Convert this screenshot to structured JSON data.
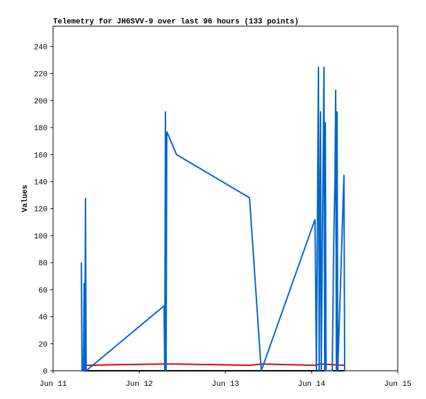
{
  "chart_data": {
    "type": "line",
    "title": "Telemetry for JH6SVV-9 over last 96 hours (133 points)",
    "y_label": "Values",
    "xlim": [
      0,
      4
    ],
    "xticks": [
      {
        "value": 0,
        "label": "Jun 11"
      },
      {
        "value": 1,
        "label": "Jun 12"
      },
      {
        "value": 2,
        "label": "Jun 13"
      },
      {
        "value": 3,
        "label": "Jun 14"
      },
      {
        "value": 4,
        "label": "Jun 15"
      }
    ],
    "ylim": [
      0,
      255
    ],
    "yticks": [
      0,
      20,
      40,
      60,
      80,
      100,
      120,
      140,
      160,
      180,
      200,
      220,
      240
    ],
    "series": [
      {
        "color": "#000000",
        "x": [
          0.328,
          3.384
        ],
        "values": [
          0,
          0
        ]
      },
      {
        "color": "#e00000",
        "x": [
          0.328,
          0.384,
          0.8,
          1.288,
          1.432,
          2.28,
          2.416,
          3.04,
          3.104,
          3.384
        ],
        "values": [
          4,
          4,
          4.5,
          5,
          5,
          4,
          5,
          4,
          5,
          4
        ]
      },
      {
        "color": "#0066cc",
        "x": [
          0.328,
          0.336,
          0.352,
          0.36,
          0.368,
          0.376,
          0.384,
          1.288,
          1.296,
          1.304,
          1.312,
          1.32,
          1.432,
          2.28,
          2.416,
          3.04,
          3.056,
          3.08,
          3.088,
          3.104,
          3.112,
          3.144,
          3.152,
          3.16,
          3.168,
          3.24,
          3.256,
          3.272,
          3.28,
          3.288,
          3.296,
          3.304,
          3.376,
          3.384
        ],
        "values": [
          80,
          0,
          0,
          65,
          0,
          128,
          0,
          48,
          0,
          192,
          0,
          177,
          160,
          128,
          0,
          112,
          0,
          225,
          0,
          192,
          0,
          225,
          0,
          184,
          0,
          0,
          90,
          145,
          208,
          0,
          192,
          0,
          145,
          0
        ]
      }
    ]
  }
}
